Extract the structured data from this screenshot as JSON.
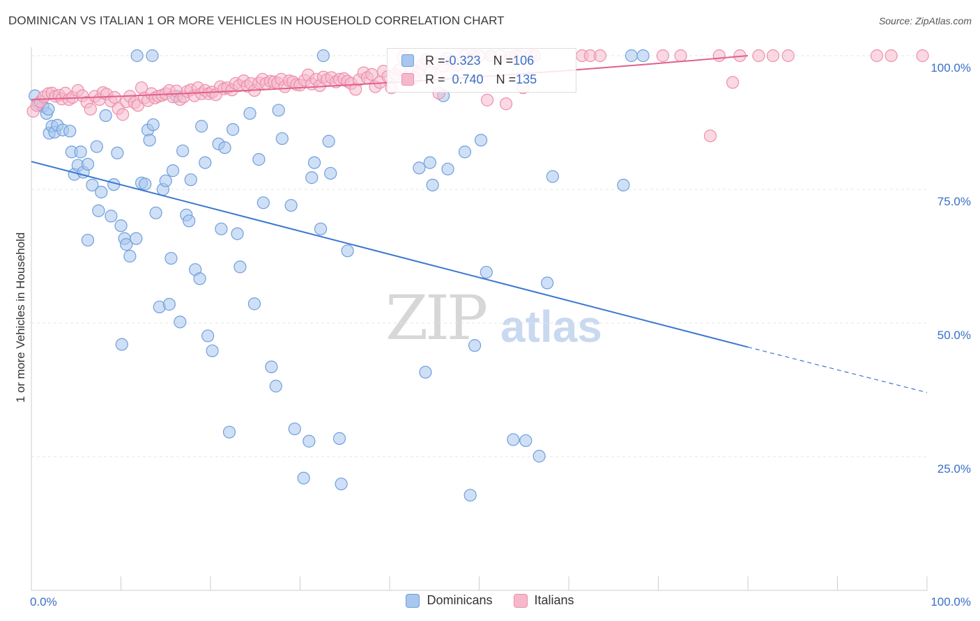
{
  "title": "DOMINICAN VS ITALIAN 1 OR MORE VEHICLES IN HOUSEHOLD CORRELATION CHART",
  "source": "Source: ZipAtlas.com",
  "watermark": {
    "zip": "ZIP",
    "atlas": "atlas"
  },
  "legend": {
    "rows": [
      {
        "r_label": "R = ",
        "r_value": "-0.323",
        "n_label": "N = ",
        "n_value": "106"
      },
      {
        "r_label": "R = ",
        "r_value": "0.740",
        "n_label": "N = ",
        "n_value": "135"
      }
    ]
  },
  "colors": {
    "dominicans_fill": "#a8c6ee",
    "dominicans_stroke": "#6f9fdc",
    "dominicans_line": "#3a77d0",
    "italians_fill": "#f6b9cc",
    "italians_stroke": "#ec8eab",
    "italians_line": "#e0608e",
    "tick_label": "#3a6fc6",
    "grid": "#e4e4e4"
  },
  "chart_data": {
    "type": "scatter",
    "title": "DOMINICAN VS ITALIAN 1 OR MORE VEHICLES IN HOUSEHOLD CORRELATION CHART",
    "xlabel": "",
    "ylabel": "1 or more Vehicles in Household",
    "x_tick_labels": [
      "0.0%",
      "100.0%"
    ],
    "y_tick_labels": [
      "100.0%",
      "75.0%",
      "50.0%",
      "25.0%"
    ],
    "y_ticks": [
      100,
      75,
      50,
      25
    ],
    "xlim": [
      0,
      100
    ],
    "ylim": [
      0,
      100
    ],
    "grid": true,
    "legend_position": "bottom",
    "series": [
      {
        "name": "Dominicans",
        "r": -0.323,
        "n": 106,
        "trend": {
          "x0": 0,
          "y0": 80.2,
          "x1": 80,
          "y1": 45.5,
          "dashed_to_x": 100,
          "dashed_to_y": 37.0
        },
        "points": [
          [
            0.4,
            92.5
          ],
          [
            0.8,
            91
          ],
          [
            1.3,
            90.5
          ],
          [
            1.7,
            89.2
          ],
          [
            1.9,
            90
          ],
          [
            2.0,
            85.5
          ],
          [
            2.3,
            86.8
          ],
          [
            2.6,
            85.7
          ],
          [
            2.9,
            87
          ],
          [
            3.5,
            86.1
          ],
          [
            4.3,
            85.9
          ],
          [
            4.5,
            82
          ],
          [
            4.8,
            77.8
          ],
          [
            5.2,
            79.5
          ],
          [
            5.5,
            82
          ],
          [
            5.8,
            78.2
          ],
          [
            6.3,
            79.7
          ],
          [
            6.8,
            75.8
          ],
          [
            7.3,
            83
          ],
          [
            7.5,
            71
          ],
          [
            7.8,
            74.5
          ],
          [
            8.3,
            88.8
          ],
          [
            8.9,
            70
          ],
          [
            9.2,
            75.9
          ],
          [
            9.6,
            81.8
          ],
          [
            10.0,
            68.2
          ],
          [
            10.4,
            65.8
          ],
          [
            10.6,
            64.7
          ],
          [
            11.0,
            62.5
          ],
          [
            11.7,
            65.8
          ],
          [
            12.3,
            76.2
          ],
          [
            12.7,
            76
          ],
          [
            13.0,
            86.1
          ],
          [
            13.2,
            84.2
          ],
          [
            13.6,
            87.1
          ],
          [
            13.9,
            70.6
          ],
          [
            14.3,
            53
          ],
          [
            14.7,
            75
          ],
          [
            15.0,
            76.6
          ],
          [
            15.4,
            53.5
          ],
          [
            15.6,
            62.1
          ],
          [
            15.8,
            78.5
          ],
          [
            16.2,
            92.4
          ],
          [
            16.6,
            50.2
          ],
          [
            16.9,
            82.2
          ],
          [
            17.3,
            70.2
          ],
          [
            17.6,
            69.1
          ],
          [
            17.8,
            76.8
          ],
          [
            18.3,
            60
          ],
          [
            18.8,
            58.3
          ],
          [
            19.0,
            86.8
          ],
          [
            19.4,
            80
          ],
          [
            19.7,
            47.6
          ],
          [
            20.2,
            44.8
          ],
          [
            20.9,
            83.5
          ],
          [
            21.2,
            67.6
          ],
          [
            21.6,
            82.8
          ],
          [
            22.1,
            29.6
          ],
          [
            22.5,
            86.2
          ],
          [
            23.0,
            66.7
          ],
          [
            23.3,
            60.5
          ],
          [
            24.4,
            89.2
          ],
          [
            24.9,
            53.6
          ],
          [
            25.4,
            80.6
          ],
          [
            25.9,
            72.5
          ],
          [
            26.8,
            41.8
          ],
          [
            27.3,
            38.2
          ],
          [
            27.6,
            89.8
          ],
          [
            28.0,
            84.5
          ],
          [
            29.0,
            72
          ],
          [
            29.4,
            30.2
          ],
          [
            30.4,
            21
          ],
          [
            31.0,
            27.9
          ],
          [
            31.3,
            77.2
          ],
          [
            31.6,
            80
          ],
          [
            32.3,
            67.6
          ],
          [
            32.6,
            100
          ],
          [
            33.2,
            84
          ],
          [
            33.4,
            78
          ],
          [
            34.4,
            28.4
          ],
          [
            34.6,
            19.9
          ],
          [
            35.3,
            63.5
          ],
          [
            13.5,
            100
          ],
          [
            10.1,
            46
          ],
          [
            43.3,
            79
          ],
          [
            44.0,
            40.8
          ],
          [
            44.5,
            80
          ],
          [
            44.8,
            75.8
          ],
          [
            46.0,
            92.5
          ],
          [
            46.5,
            78.8
          ],
          [
            48.4,
            82
          ],
          [
            49.0,
            17.8
          ],
          [
            49.5,
            45.8
          ],
          [
            50.2,
            84.2
          ],
          [
            50.8,
            59.5
          ],
          [
            51.3,
            100
          ],
          [
            53.8,
            28.2
          ],
          [
            55.2,
            28
          ],
          [
            56.7,
            25.1
          ],
          [
            57.6,
            57.5
          ],
          [
            58.2,
            77.4
          ],
          [
            66.1,
            75.8
          ],
          [
            67.0,
            100
          ],
          [
            68.3,
            100
          ],
          [
            6.3,
            65.5
          ],
          [
            11.8,
            100
          ]
        ]
      },
      {
        "name": "Italians",
        "r": 0.74,
        "n": 135,
        "trend": {
          "x0": 0,
          "y0": 91.8,
          "x1": 80,
          "y1": 100.0
        },
        "points": [
          [
            0.2,
            89.6
          ],
          [
            0.6,
            90.7
          ],
          [
            1.0,
            91.4
          ],
          [
            1.4,
            92.3
          ],
          [
            1.9,
            92.9
          ],
          [
            2.3,
            93
          ],
          [
            2.7,
            92.4
          ],
          [
            3.1,
            92.6
          ],
          [
            3.4,
            91.9
          ],
          [
            3.8,
            93
          ],
          [
            4.2,
            91.8
          ],
          [
            4.6,
            92.2
          ],
          [
            5.2,
            93.5
          ],
          [
            5.7,
            92.5
          ],
          [
            6.2,
            91.3
          ],
          [
            6.6,
            90
          ],
          [
            7.1,
            92.4
          ],
          [
            7.6,
            91.8
          ],
          [
            8.0,
            93.1
          ],
          [
            8.4,
            92.8
          ],
          [
            8.9,
            91.5
          ],
          [
            9.3,
            92.2
          ],
          [
            9.7,
            90.1
          ],
          [
            10.2,
            89
          ],
          [
            10.6,
            91.4
          ],
          [
            11.0,
            92.4
          ],
          [
            11.5,
            91.2
          ],
          [
            11.9,
            90.7
          ],
          [
            12.3,
            94
          ],
          [
            12.6,
            92.1
          ],
          [
            13.0,
            91.6
          ],
          [
            13.4,
            92.9
          ],
          [
            13.8,
            92.1
          ],
          [
            14.2,
            92.4
          ],
          [
            14.6,
            92.6
          ],
          [
            15.0,
            92.9
          ],
          [
            15.4,
            93.5
          ],
          [
            15.8,
            92.3
          ],
          [
            16.2,
            93.4
          ],
          [
            16.6,
            91.8
          ],
          [
            17.0,
            92.3
          ],
          [
            17.4,
            93.3
          ],
          [
            17.8,
            93.6
          ],
          [
            18.2,
            92.5
          ],
          [
            18.6,
            94
          ],
          [
            19.0,
            92.9
          ],
          [
            19.4,
            93.5
          ],
          [
            19.8,
            92.9
          ],
          [
            20.2,
            93.2
          ],
          [
            20.6,
            92.7
          ],
          [
            21.1,
            94.2
          ],
          [
            21.5,
            93.8
          ],
          [
            21.9,
            94
          ],
          [
            22.4,
            93.6
          ],
          [
            22.8,
            94.8
          ],
          [
            23.2,
            94.4
          ],
          [
            23.7,
            95.3
          ],
          [
            24.1,
            94.3
          ],
          [
            24.5,
            94.8
          ],
          [
            24.9,
            93.5
          ],
          [
            25.4,
            94.9
          ],
          [
            25.8,
            95.6
          ],
          [
            26.2,
            94.8
          ],
          [
            26.7,
            95.2
          ],
          [
            27.1,
            95.1
          ],
          [
            27.5,
            94.9
          ],
          [
            27.9,
            95.6
          ],
          [
            28.3,
            94.2
          ],
          [
            28.8,
            95.3
          ],
          [
            29.2,
            95.1
          ],
          [
            29.6,
            94.6
          ],
          [
            30.0,
            94.5
          ],
          [
            30.5,
            95.4
          ],
          [
            30.9,
            96.4
          ],
          [
            31.3,
            94.7
          ],
          [
            31.8,
            95.6
          ],
          [
            32.2,
            94.4
          ],
          [
            32.6,
            96
          ],
          [
            33.0,
            95.5
          ],
          [
            33.5,
            95.9
          ],
          [
            34.0,
            95.1
          ],
          [
            34.4,
            95.6
          ],
          [
            34.9,
            95.7
          ],
          [
            35.3,
            95.2
          ],
          [
            35.7,
            94.8
          ],
          [
            36.2,
            93.7
          ],
          [
            36.6,
            95.5
          ],
          [
            37.1,
            96.8
          ],
          [
            37.5,
            95.9
          ],
          [
            38.0,
            96.5
          ],
          [
            38.4,
            94.2
          ],
          [
            38.9,
            95
          ],
          [
            39.3,
            97.1
          ],
          [
            39.8,
            96.1
          ],
          [
            40.2,
            94
          ],
          [
            40.6,
            96.5
          ],
          [
            41.1,
            97.4
          ],
          [
            41.5,
            99.8
          ],
          [
            42.0,
            98.9
          ],
          [
            42.4,
            97.5
          ],
          [
            42.8,
            95.9
          ],
          [
            43.2,
            97
          ],
          [
            43.7,
            98.4
          ],
          [
            44.1,
            99.2
          ],
          [
            44.6,
            97
          ],
          [
            45.0,
            98.6
          ],
          [
            45.5,
            93
          ],
          [
            46.0,
            98
          ],
          [
            46.4,
            99.5
          ],
          [
            47.0,
            99
          ],
          [
            47.5,
            98.2
          ],
          [
            48.4,
            100
          ],
          [
            49.0,
            99.3
          ],
          [
            49.4,
            100
          ],
          [
            50.0,
            100
          ],
          [
            50.9,
            91.7
          ],
          [
            51.3,
            100
          ],
          [
            52.4,
            100
          ],
          [
            53.0,
            91
          ],
          [
            53.5,
            99.6
          ],
          [
            54.1,
            100
          ],
          [
            54.6,
            100
          ],
          [
            54.9,
            94
          ],
          [
            55.8,
            100
          ],
          [
            56.2,
            100
          ],
          [
            61.5,
            100
          ],
          [
            62.4,
            100
          ],
          [
            63.5,
            100
          ],
          [
            70.5,
            100
          ],
          [
            72.5,
            100
          ],
          [
            76.8,
            100
          ],
          [
            78.3,
            95
          ],
          [
            79.1,
            100
          ],
          [
            81.2,
            100
          ],
          [
            82.8,
            100
          ],
          [
            84.5,
            100
          ],
          [
            94.4,
            100
          ],
          [
            96.0,
            100
          ],
          [
            99.5,
            100
          ],
          [
            75.8,
            85
          ]
        ]
      }
    ]
  },
  "bottom_legend": [
    {
      "label": "Dominicans"
    },
    {
      "label": "Italians"
    }
  ]
}
